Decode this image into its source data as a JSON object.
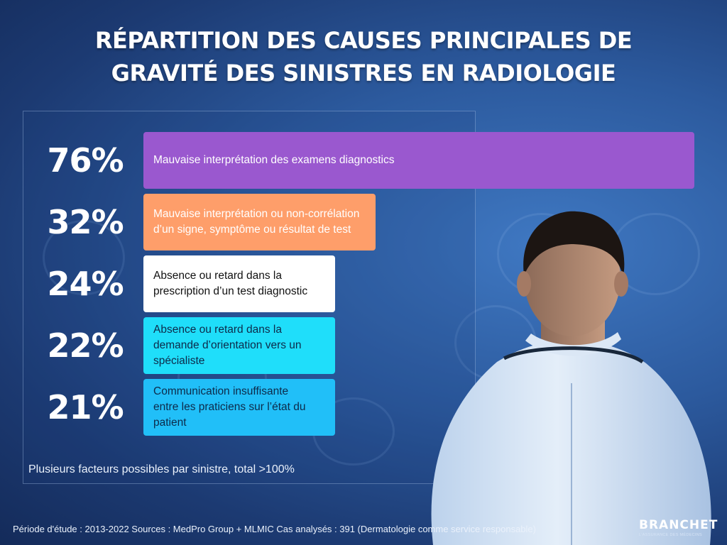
{
  "title_lines": [
    "RÉPARTITION DES CAUSES PRINCIPALES DE",
    "GRAVITÉ DES SINISTRES EN RADIOLOGIE"
  ],
  "chart_data": {
    "type": "bar",
    "orientation": "horizontal",
    "unit": "%",
    "xlim": [
      0,
      100
    ],
    "grid": false,
    "bars": [
      {
        "value": 76,
        "value_label": "76%",
        "label": "Mauvaise interprétation des examens diagnostics",
        "color": "#9a58cf",
        "text_color": "#ffffff"
      },
      {
        "value": 32,
        "value_label": "32%",
        "label": "Mauvaise interprétation ou non-corrélation\nd’un signe, symptôme ou résultat de test",
        "color": "#fe9e6a",
        "text_color": "#ffffff"
      },
      {
        "value": 24,
        "value_label": "24%",
        "label": "Absence ou retard dans la\nprescription d’un test diagnostic",
        "color": "#ffffff",
        "text_color": "#111111"
      },
      {
        "value": 22,
        "value_label": "22%",
        "label": "Absence ou retard dans la\ndemande d’orientation vers un\nspécialiste",
        "color": "#1fdefa",
        "text_color": "#0d2a4a"
      },
      {
        "value": 21,
        "value_label": "21%",
        "label": "Communication insuffisante\nentre les praticiens sur l’état du\npatient",
        "color": "#21bff8",
        "text_color": "#0d2a4a"
      }
    ]
  },
  "note": "Plusieurs facteurs possibles par sinistre, total >100%",
  "footer": "Période d'étude : 2013-2022 Sources : MedPro Group + MLMIC Cas analysés : 391 (Dermatologie comme service responsable)",
  "logo": {
    "name": "BRANCHET",
    "tagline": "L'ASSURANCE DES MÉDECINS"
  }
}
